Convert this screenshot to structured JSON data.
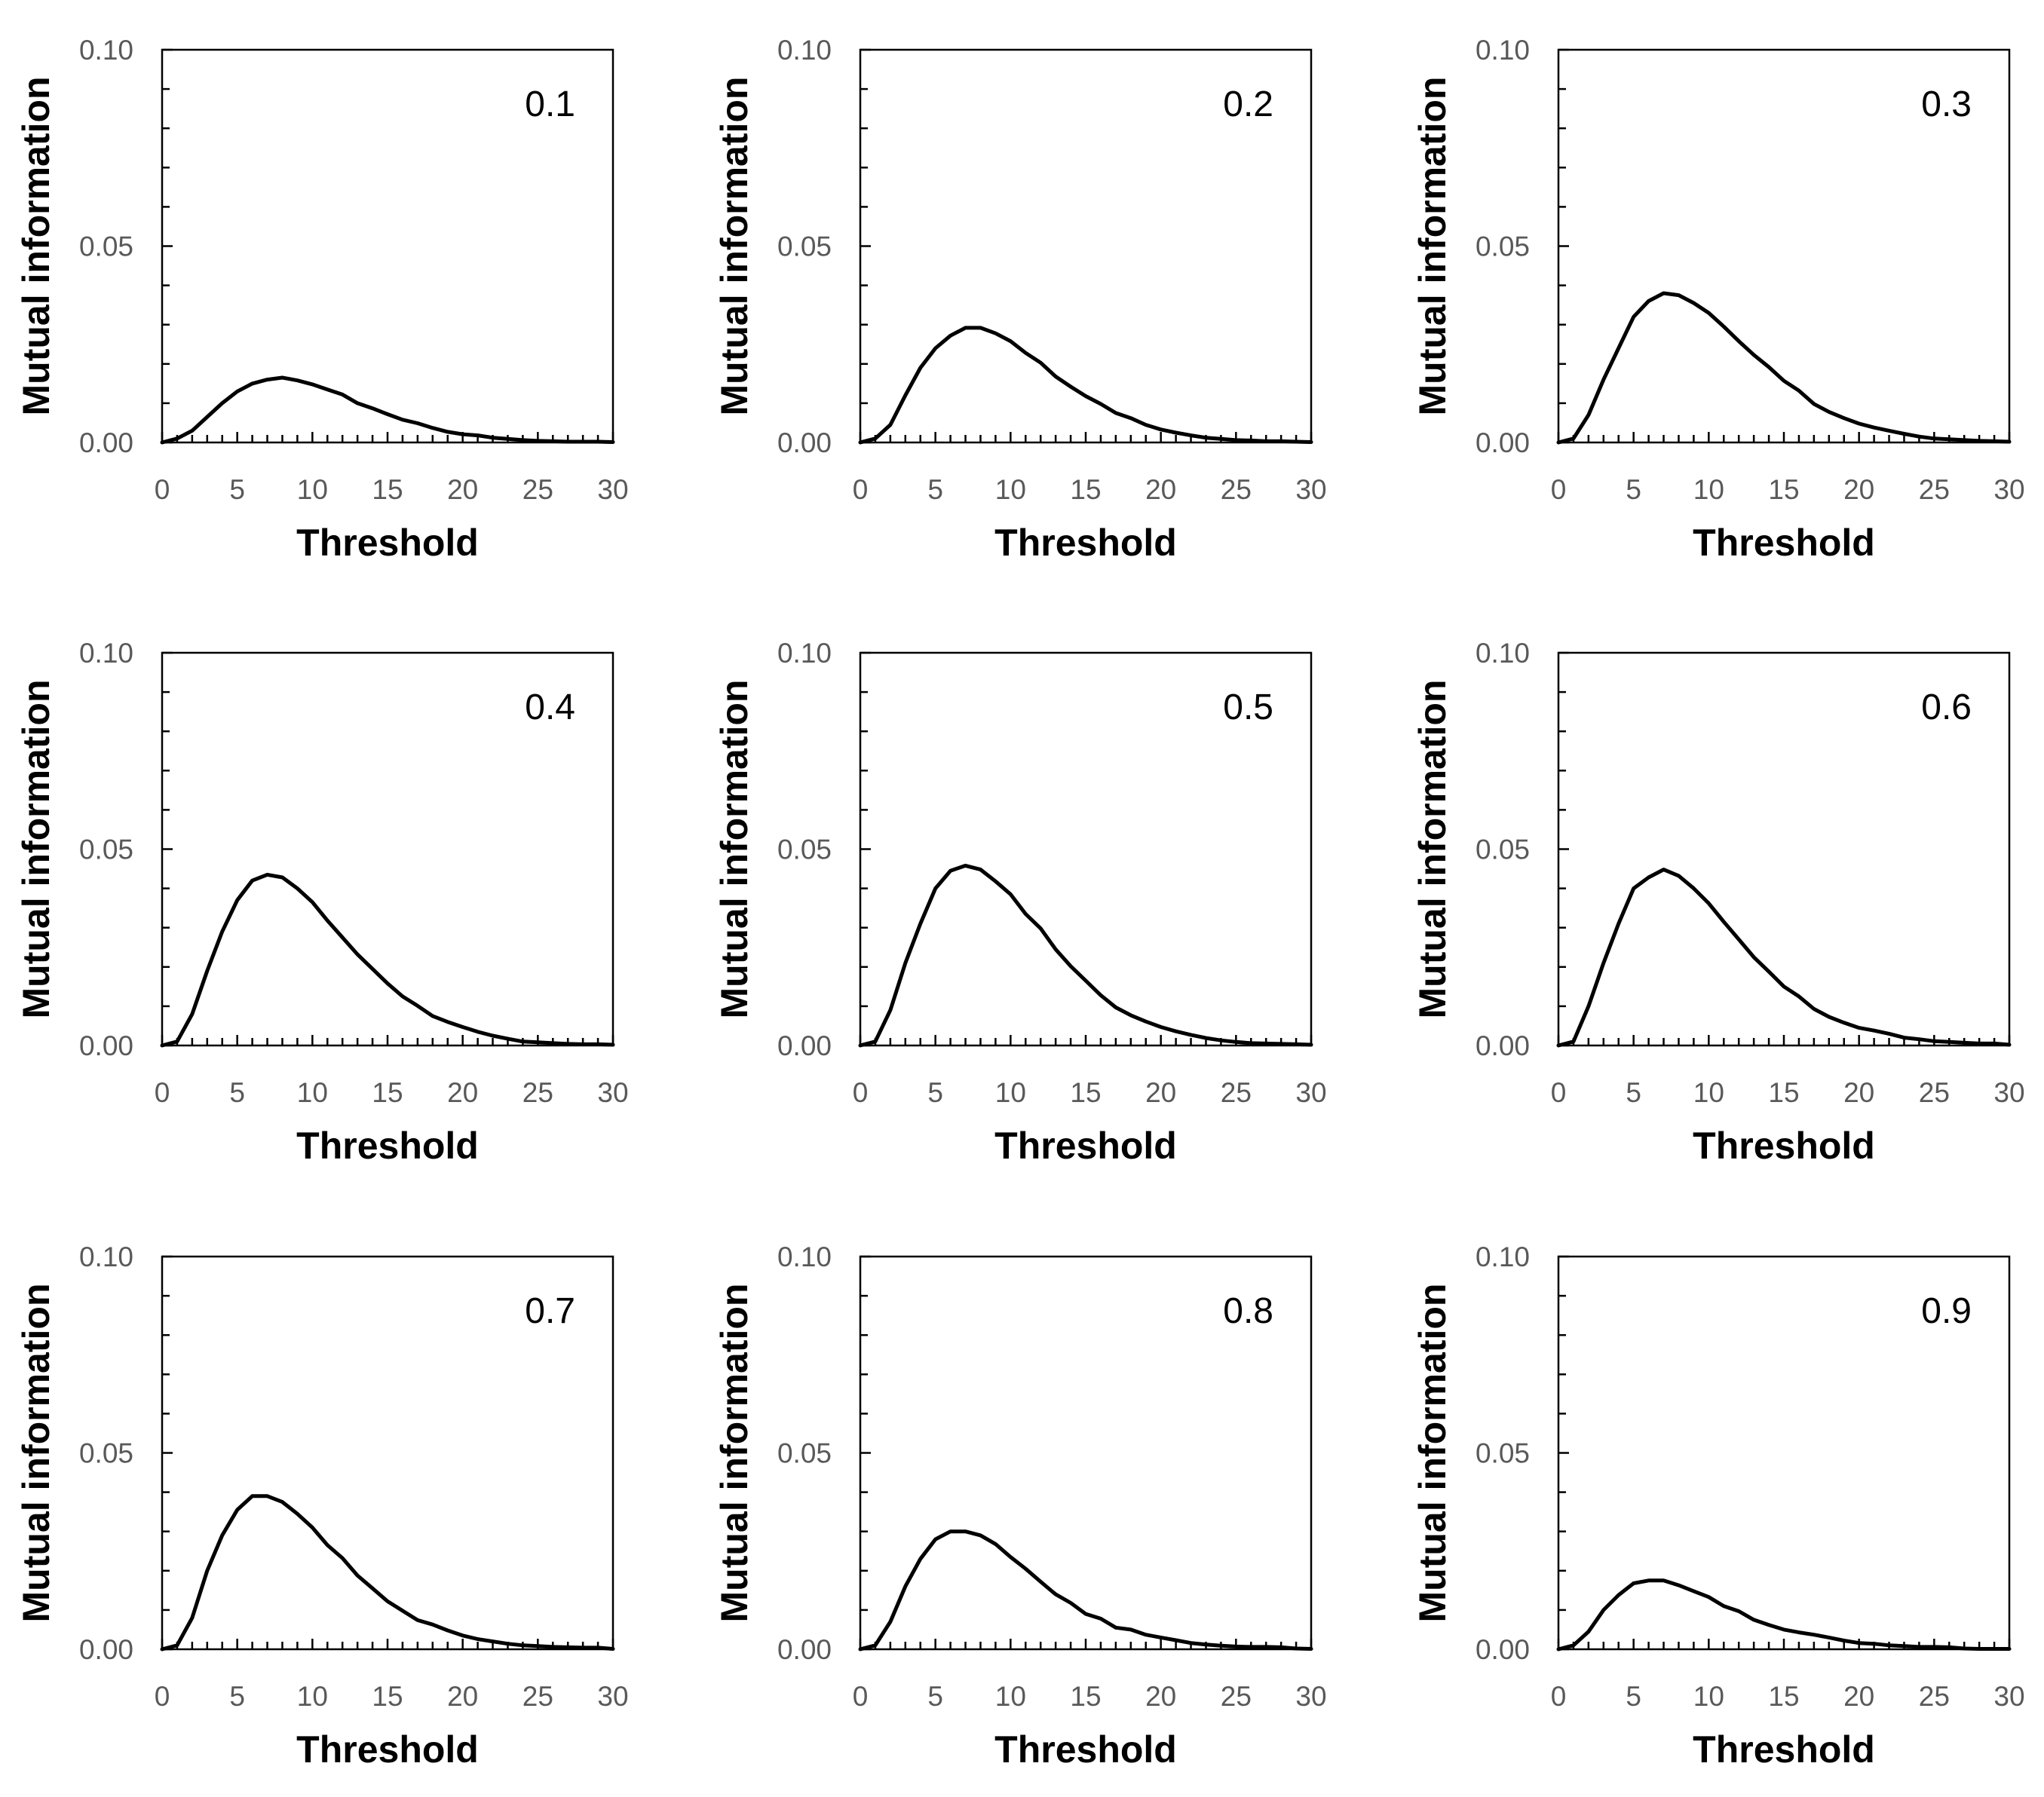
{
  "colors": {
    "line": "#000000",
    "axis": "#000000",
    "tick_label": "#595959"
  },
  "chart_data": [
    {
      "type": "line",
      "panel_label": "0.1",
      "xlabel": "Threshold",
      "ylabel": "Mutual information",
      "xlim": [
        0,
        30
      ],
      "ylim": [
        0,
        0.1
      ],
      "xticks": [
        "0",
        "5",
        "10",
        "15",
        "20",
        "25",
        "30"
      ],
      "yticks": [
        "0.00",
        "0.05",
        "0.10"
      ],
      "x": [
        0,
        1,
        2,
        3,
        4,
        5,
        6,
        7,
        8,
        9,
        10,
        11,
        12,
        13,
        14,
        15,
        16,
        17,
        18,
        19,
        20,
        21,
        22,
        23,
        24,
        25,
        26,
        27,
        28,
        29,
        30
      ],
      "y": [
        0,
        0.001,
        0.003,
        0.0065,
        0.01,
        0.013,
        0.015,
        0.016,
        0.0165,
        0.0158,
        0.0148,
        0.0135,
        0.0122,
        0.01,
        0.0087,
        0.0072,
        0.0058,
        0.0049,
        0.0037,
        0.0027,
        0.0021,
        0.0018,
        0.0012,
        0.0009,
        0.0006,
        0.0004,
        0.0003,
        0.0002,
        0.0002,
        0.0002,
        0.0001
      ]
    },
    {
      "type": "line",
      "panel_label": "0.2",
      "xlabel": "Threshold",
      "ylabel": "Mutual information",
      "xlim": [
        0,
        30
      ],
      "ylim": [
        0,
        0.1
      ],
      "xticks": [
        "0",
        "5",
        "10",
        "15",
        "20",
        "25",
        "30"
      ],
      "yticks": [
        "0.00",
        "0.05",
        "0.10"
      ],
      "x": [
        0,
        1,
        2,
        3,
        4,
        5,
        6,
        7,
        8,
        9,
        10,
        11,
        12,
        13,
        14,
        15,
        16,
        17,
        18,
        19,
        20,
        21,
        22,
        23,
        24,
        25,
        26,
        27,
        28,
        29,
        30
      ],
      "y": [
        0,
        0.001,
        0.0045,
        0.012,
        0.019,
        0.024,
        0.0272,
        0.0292,
        0.0292,
        0.0278,
        0.0258,
        0.0228,
        0.0203,
        0.0168,
        0.0142,
        0.0118,
        0.0098,
        0.0075,
        0.0062,
        0.0045,
        0.0033,
        0.0025,
        0.0018,
        0.0012,
        0.0009,
        0.0006,
        0.0005,
        0.0003,
        0.0003,
        0.0002,
        0.0001
      ]
    },
    {
      "type": "line",
      "panel_label": "0.3",
      "xlabel": "Threshold",
      "ylabel": "Mutual information",
      "xlim": [
        0,
        30
      ],
      "ylim": [
        0,
        0.1
      ],
      "xticks": [
        "0",
        "5",
        "10",
        "15",
        "20",
        "25",
        "30"
      ],
      "yticks": [
        "0.00",
        "0.05",
        "0.10"
      ],
      "x": [
        0,
        1,
        2,
        3,
        4,
        5,
        6,
        7,
        8,
        9,
        10,
        11,
        12,
        13,
        14,
        15,
        16,
        17,
        18,
        19,
        20,
        21,
        22,
        23,
        24,
        25,
        26,
        27,
        28,
        29,
        30
      ],
      "y": [
        0,
        0.001,
        0.007,
        0.016,
        0.024,
        0.032,
        0.036,
        0.038,
        0.0375,
        0.0355,
        0.033,
        0.0295,
        0.0258,
        0.0223,
        0.0192,
        0.0157,
        0.0132,
        0.0098,
        0.0078,
        0.0062,
        0.0048,
        0.0038,
        0.003,
        0.0022,
        0.0015,
        0.001,
        0.0008,
        0.0006,
        0.0004,
        0.0003,
        0.0002
      ]
    },
    {
      "type": "line",
      "panel_label": "0.4",
      "xlabel": "Threshold",
      "ylabel": "Mutual information",
      "xlim": [
        0,
        30
      ],
      "ylim": [
        0,
        0.1
      ],
      "xticks": [
        "0",
        "5",
        "10",
        "15",
        "20",
        "25",
        "30"
      ],
      "yticks": [
        "0.00",
        "0.05",
        "0.10"
      ],
      "x": [
        0,
        1,
        2,
        3,
        4,
        5,
        6,
        7,
        8,
        9,
        10,
        11,
        12,
        13,
        14,
        15,
        16,
        17,
        18,
        19,
        20,
        21,
        22,
        23,
        24,
        25,
        26,
        27,
        28,
        29,
        30
      ],
      "y": [
        0,
        0.001,
        0.008,
        0.019,
        0.029,
        0.037,
        0.042,
        0.0435,
        0.0428,
        0.04,
        0.0365,
        0.0318,
        0.0275,
        0.0232,
        0.0195,
        0.0158,
        0.0125,
        0.0101,
        0.0075,
        0.006,
        0.0047,
        0.0035,
        0.0025,
        0.0017,
        0.001,
        0.0008,
        0.0006,
        0.0004,
        0.0003,
        0.0003,
        0.0002
      ]
    },
    {
      "type": "line",
      "panel_label": "0.5",
      "xlabel": "Threshold",
      "ylabel": "Mutual information",
      "xlim": [
        0,
        30
      ],
      "ylim": [
        0,
        0.1
      ],
      "xticks": [
        "0",
        "5",
        "10",
        "15",
        "20",
        "25",
        "30"
      ],
      "yticks": [
        "0.00",
        "0.05",
        "0.10"
      ],
      "x": [
        0,
        1,
        2,
        3,
        4,
        5,
        6,
        7,
        8,
        9,
        10,
        11,
        12,
        13,
        14,
        15,
        16,
        17,
        18,
        19,
        20,
        21,
        22,
        23,
        24,
        25,
        26,
        27,
        28,
        29,
        30
      ],
      "y": [
        0,
        0.001,
        0.009,
        0.021,
        0.031,
        0.04,
        0.0445,
        0.0458,
        0.0448,
        0.0418,
        0.0385,
        0.0335,
        0.0298,
        0.0245,
        0.0202,
        0.0165,
        0.0128,
        0.0097,
        0.0077,
        0.0061,
        0.0047,
        0.0036,
        0.0027,
        0.0019,
        0.0013,
        0.0009,
        0.0006,
        0.0005,
        0.0004,
        0.0003,
        0.0002
      ]
    },
    {
      "type": "line",
      "panel_label": "0.6",
      "xlabel": "Threshold",
      "ylabel": "Mutual information",
      "xlim": [
        0,
        30
      ],
      "ylim": [
        0,
        0.1
      ],
      "xticks": [
        "0",
        "5",
        "10",
        "15",
        "20",
        "25",
        "30"
      ],
      "yticks": [
        "0.00",
        "0.05",
        "0.10"
      ],
      "x": [
        0,
        1,
        2,
        3,
        4,
        5,
        6,
        7,
        8,
        9,
        10,
        11,
        12,
        13,
        14,
        15,
        16,
        17,
        18,
        19,
        20,
        21,
        22,
        23,
        24,
        25,
        26,
        27,
        28,
        29,
        30
      ],
      "y": [
        0,
        0.001,
        0.01,
        0.021,
        0.031,
        0.04,
        0.0428,
        0.0448,
        0.0432,
        0.04,
        0.0362,
        0.0315,
        0.027,
        0.0225,
        0.0188,
        0.015,
        0.0125,
        0.0093,
        0.0073,
        0.0058,
        0.0045,
        0.0038,
        0.003,
        0.002,
        0.0016,
        0.0011,
        0.0009,
        0.0007,
        0.0005,
        0.0005,
        0.0002
      ]
    },
    {
      "type": "line",
      "panel_label": "0.7",
      "xlabel": "Threshold",
      "ylabel": "Mutual information",
      "xlim": [
        0,
        30
      ],
      "ylim": [
        0,
        0.1
      ],
      "xticks": [
        "0",
        "5",
        "10",
        "15",
        "20",
        "25",
        "30"
      ],
      "yticks": [
        "0.00",
        "0.05",
        "0.10"
      ],
      "x": [
        0,
        1,
        2,
        3,
        4,
        5,
        6,
        7,
        8,
        9,
        10,
        11,
        12,
        13,
        14,
        15,
        16,
        17,
        18,
        19,
        20,
        21,
        22,
        23,
        24,
        25,
        26,
        27,
        28,
        29,
        30
      ],
      "y": [
        0,
        0.001,
        0.008,
        0.02,
        0.029,
        0.0355,
        0.039,
        0.039,
        0.0375,
        0.0345,
        0.031,
        0.0265,
        0.0232,
        0.0188,
        0.0155,
        0.0122,
        0.0098,
        0.0074,
        0.0063,
        0.0048,
        0.0035,
        0.0026,
        0.002,
        0.0014,
        0.001,
        0.0008,
        0.0006,
        0.0005,
        0.0004,
        0.0004,
        0.0001
      ]
    },
    {
      "type": "line",
      "panel_label": "0.8",
      "xlabel": "Threshold",
      "ylabel": "Mutual information",
      "xlim": [
        0,
        30
      ],
      "ylim": [
        0,
        0.1
      ],
      "xticks": [
        "0",
        "5",
        "10",
        "15",
        "20",
        "25",
        "30"
      ],
      "yticks": [
        "0.00",
        "0.05",
        "0.10"
      ],
      "x": [
        0,
        1,
        2,
        3,
        4,
        5,
        6,
        7,
        8,
        9,
        10,
        11,
        12,
        13,
        14,
        15,
        16,
        17,
        18,
        19,
        20,
        21,
        22,
        23,
        24,
        25,
        26,
        27,
        28,
        29,
        30
      ],
      "y": [
        0,
        0.001,
        0.007,
        0.016,
        0.023,
        0.028,
        0.03,
        0.03,
        0.029,
        0.0268,
        0.0235,
        0.0205,
        0.0172,
        0.014,
        0.0118,
        0.009,
        0.0078,
        0.0055,
        0.005,
        0.0037,
        0.003,
        0.0023,
        0.0016,
        0.0012,
        0.0009,
        0.0007,
        0.0006,
        0.0006,
        0.0005,
        0.0002,
        0.0001
      ]
    },
    {
      "type": "line",
      "panel_label": "0.9",
      "xlabel": "Threshold",
      "ylabel": "Mutual information",
      "xlim": [
        0,
        30
      ],
      "ylim": [
        0,
        0.1
      ],
      "xticks": [
        "0",
        "5",
        "10",
        "15",
        "20",
        "25",
        "30"
      ],
      "yticks": [
        "0.00",
        "0.05",
        "0.10"
      ],
      "x": [
        0,
        1,
        2,
        3,
        4,
        5,
        6,
        7,
        8,
        9,
        10,
        11,
        12,
        13,
        14,
        15,
        16,
        17,
        18,
        19,
        20,
        21,
        22,
        23,
        24,
        25,
        26,
        27,
        28,
        29,
        30
      ],
      "y": [
        0,
        0.001,
        0.0045,
        0.01,
        0.0138,
        0.0168,
        0.0175,
        0.0175,
        0.0163,
        0.0148,
        0.0133,
        0.011,
        0.0097,
        0.0075,
        0.0062,
        0.005,
        0.0043,
        0.0037,
        0.003,
        0.0022,
        0.0016,
        0.0014,
        0.001,
        0.0008,
        0.0006,
        0.0006,
        0.0005,
        0.0002,
        0.0001,
        0.0001,
        0.0001
      ]
    }
  ]
}
